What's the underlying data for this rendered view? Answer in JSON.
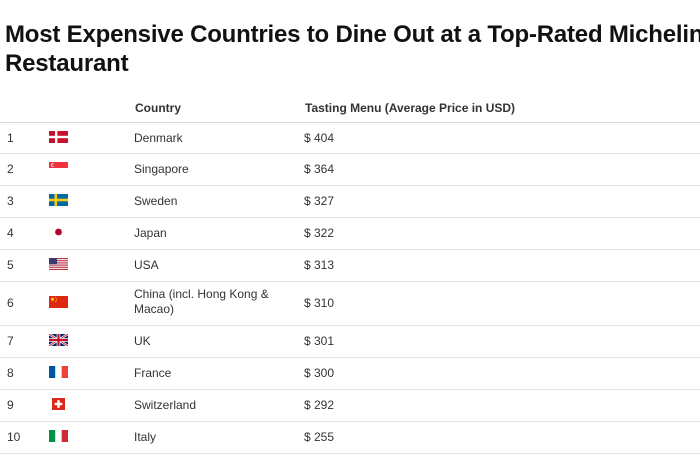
{
  "title": {
    "line1": "Most Expensive Countries to Dine Out at a Top-Rated Michelin",
    "line2": "Restaurant"
  },
  "table": {
    "headers": {
      "rank": "",
      "flag": "",
      "country": "Country",
      "price": "Tasting Menu (Average Price in USD)"
    },
    "rows": [
      {
        "rank": "1",
        "flag": "denmark-flag-icon",
        "country": "Denmark",
        "price": "$ 404"
      },
      {
        "rank": "2",
        "flag": "singapore-flag-icon",
        "country": "Singapore",
        "price": "$ 364"
      },
      {
        "rank": "3",
        "flag": "sweden-flag-icon",
        "country": "Sweden",
        "price": "$ 327"
      },
      {
        "rank": "4",
        "flag": "japan-flag-icon",
        "country": "Japan",
        "price": "$ 322"
      },
      {
        "rank": "5",
        "flag": "usa-flag-icon",
        "country": "USA",
        "price": "$ 313"
      },
      {
        "rank": "6",
        "flag": "china-flag-icon",
        "country": "China (incl. Hong Kong &",
        "country_line2": "Macao)",
        "price": "$ 310"
      },
      {
        "rank": "7",
        "flag": "uk-flag-icon",
        "country": "UK",
        "price": "$ 301"
      },
      {
        "rank": "8",
        "flag": "france-flag-icon",
        "country": "France",
        "price": "$ 300"
      },
      {
        "rank": "9",
        "flag": "switzerland-flag-icon",
        "country": "Switzerland",
        "price": "$ 292"
      },
      {
        "rank": "10",
        "flag": "italy-flag-icon",
        "country": "Italy",
        "price": "$ 255"
      }
    ]
  }
}
